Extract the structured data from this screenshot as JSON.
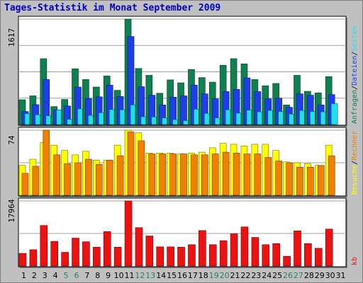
{
  "title": "Tages-Statistik im Monat September 2009",
  "colors": {
    "background": "#c0c0c0",
    "panel": "#ffffff",
    "grid": "#a0a0a0",
    "anfragen": "#0f8050",
    "dateien": "#1c3fe8",
    "seiten": "#20e0f0",
    "besuche": "#ffff00",
    "rechner": "#f08000",
    "kb": "#ee1111",
    "day_default": "#000000",
    "day_weekend": "#2a8060"
  },
  "chart_data": [
    {
      "type": "bar",
      "title": "",
      "ymax_label": "1617",
      "ylim": [
        0,
        1617
      ],
      "categories": [
        "1",
        "2",
        "3",
        "4",
        "5",
        "6",
        "7",
        "8",
        "9",
        "10",
        "11",
        "12",
        "13",
        "14",
        "15",
        "16",
        "17",
        "18",
        "19",
        "20",
        "21",
        "22",
        "23",
        "24",
        "25",
        "26",
        "27",
        "28",
        "29",
        "30",
        "31"
      ],
      "series": [
        {
          "name": "Anfragen",
          "color_key": "anfragen",
          "values": [
            380,
            440,
            1010,
            275,
            385,
            855,
            690,
            575,
            745,
            525,
            1617,
            860,
            755,
            480,
            685,
            640,
            845,
            720,
            650,
            910,
            1010,
            930,
            690,
            595,
            630,
            300,
            755,
            510,
            485,
            735,
            0
          ]
        },
        {
          "name": "Dateien",
          "color_key": "dateien",
          "values": [
            200,
            305,
            690,
            220,
            285,
            575,
            400,
            425,
            605,
            430,
            1350,
            580,
            450,
            300,
            420,
            440,
            605,
            470,
            395,
            505,
            540,
            715,
            505,
            395,
            405,
            265,
            470,
            450,
            300,
            460,
            0
          ]
        },
        {
          "name": "Seiten",
          "color_key": "seiten",
          "values": [
            165,
            150,
            135,
            225,
            80,
            240,
            140,
            180,
            230,
            225,
            300,
            120,
            115,
            100,
            75,
            60,
            235,
            170,
            100,
            225,
            175,
            220,
            195,
            215,
            200,
            160,
            215,
            200,
            195,
            320,
            0
          ]
        }
      ]
    },
    {
      "type": "bar",
      "title": "",
      "ymax_label": "74",
      "ylim": [
        0,
        74
      ],
      "categories": [
        "1",
        "2",
        "3",
        "4",
        "5",
        "6",
        "7",
        "8",
        "9",
        "10",
        "11",
        "12",
        "13",
        "14",
        "15",
        "16",
        "17",
        "18",
        "19",
        "20",
        "21",
        "22",
        "23",
        "24",
        "25",
        "26",
        "27",
        "28",
        "29",
        "30",
        "31"
      ],
      "series": [
        {
          "name": "Besuche",
          "color_key": "besuche",
          "values": [
            34,
            41,
            60,
            57,
            51,
            46,
            50,
            40,
            40,
            57,
            74,
            71,
            48,
            48,
            48,
            47,
            48,
            49,
            54,
            59,
            58,
            56,
            58,
            58,
            51,
            38,
            37,
            36,
            34,
            57,
            0
          ]
        },
        {
          "name": "Rechner",
          "color_key": "rechner",
          "values": [
            25,
            33,
            74,
            46,
            36,
            37,
            41,
            35,
            40,
            45,
            72,
            62,
            47,
            47,
            47,
            47,
            46,
            46,
            47,
            49,
            48,
            47,
            47,
            43,
            39,
            37,
            32,
            32,
            34,
            45,
            0
          ]
        }
      ]
    },
    {
      "type": "bar",
      "title": "",
      "ymax_label": "17964",
      "ylim": [
        0,
        17964
      ],
      "categories": [
        "1",
        "2",
        "3",
        "4",
        "5",
        "6",
        "7",
        "8",
        "9",
        "10",
        "11",
        "12",
        "13",
        "14",
        "15",
        "16",
        "17",
        "18",
        "19",
        "20",
        "21",
        "22",
        "23",
        "24",
        "25",
        "26",
        "27",
        "28",
        "29",
        "30",
        "31"
      ],
      "series": [
        {
          "name": "kb",
          "color_key": "kb",
          "values": [
            3500,
            4500,
            11200,
            6800,
            3800,
            7700,
            6700,
            5200,
            9500,
            5200,
            17964,
            10600,
            8300,
            5300,
            5300,
            5200,
            5900,
            9800,
            5900,
            7000,
            8900,
            10800,
            7900,
            5900,
            6200,
            2700,
            9700,
            6200,
            4900,
            10200,
            0
          ]
        }
      ]
    }
  ],
  "x_axis": {
    "days": [
      "1",
      "2",
      "3",
      "4",
      "5",
      "6",
      "7",
      "8",
      "9",
      "10",
      "11",
      "12",
      "13",
      "14",
      "15",
      "16",
      "17",
      "18",
      "19",
      "20",
      "21",
      "22",
      "23",
      "24",
      "25",
      "26",
      "27",
      "28",
      "29",
      "30",
      "31"
    ],
    "weekend": [
      "5",
      "6",
      "12",
      "13",
      "19",
      "20",
      "26",
      "27"
    ]
  },
  "right_labels": {
    "top": [
      {
        "text": "Anfragen",
        "color_key": "anfragen"
      },
      {
        "text": "/",
        "color_key": "day_default"
      },
      {
        "text": "Dateien",
        "color_key": "dateien"
      },
      {
        "text": "/",
        "color_key": "day_default"
      },
      {
        "text": "Seiten",
        "color_key": "seiten"
      }
    ],
    "middle": [
      {
        "text": "Besuche",
        "color_key": "besuche"
      },
      {
        "text": "/",
        "color_key": "day_default"
      },
      {
        "text": "Rechner",
        "color_key": "rechner"
      }
    ],
    "bottom": [
      {
        "text": "kb",
        "color_key": "kb"
      }
    ]
  }
}
